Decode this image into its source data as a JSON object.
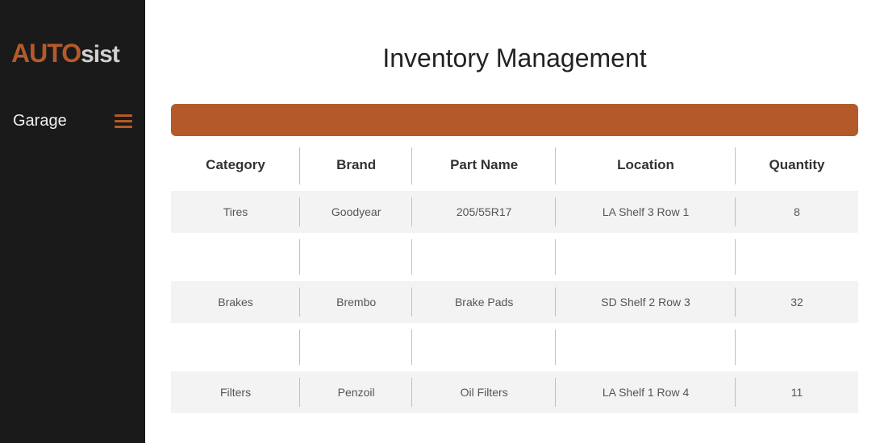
{
  "brand": {
    "part1": "AUTO",
    "part2": "sist"
  },
  "sidebar": {
    "items": [
      {
        "label": "Garage"
      }
    ]
  },
  "page": {
    "title": "Inventory  Management"
  },
  "colors": {
    "accent": "#b45a2a",
    "sidebar_bg": "#1a1a1a",
    "row_bg": "#f3f3f3",
    "divider": "#bfbfbf",
    "text_primary": "#222222",
    "text_secondary": "#555555"
  },
  "table": {
    "columns": [
      "Category",
      "Brand",
      "Part Name",
      "Location",
      "Quantity"
    ],
    "rows": [
      [
        "Tires",
        "Goodyear",
        "205/55R17",
        "LA Shelf 3 Row 1",
        "8"
      ],
      [
        "Brakes",
        "Brembo",
        "Brake Pads",
        "SD Shelf 2 Row 3",
        "32"
      ],
      [
        "Filters",
        "Penzoil",
        "Oil Filters",
        "LA Shelf 1 Row 4",
        "11"
      ]
    ]
  }
}
